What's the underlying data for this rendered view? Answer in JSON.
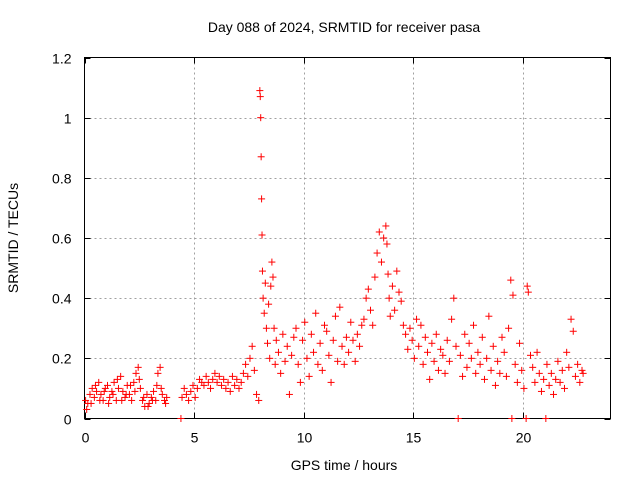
{
  "chart_data": {
    "type": "scatter",
    "title": "Day 088 of 2024, SRMTID for receiver pasa",
    "xlabel": "GPS time / hours",
    "ylabel": "SRMTID / TECUs",
    "xlim": [
      0,
      24
    ],
    "ylim": [
      0,
      1.2
    ],
    "xticks": [
      0,
      5,
      10,
      15,
      20
    ],
    "xtick_labels": [
      "0",
      "5",
      "10",
      "15",
      "20"
    ],
    "yticks": [
      0,
      0.2,
      0.4,
      0.6,
      0.8,
      1.0,
      1.2
    ],
    "ytick_labels": [
      "0",
      "0.2",
      "0.4",
      "0.6",
      "0.8",
      "1",
      "1.2"
    ],
    "grid": true,
    "marker": "+",
    "color": "#ff0000",
    "series": [
      {
        "name": "SRMTID",
        "points": [
          [
            0.05,
            0.06
          ],
          [
            0.15,
            0.05
          ],
          [
            0.25,
            0.08
          ],
          [
            0.35,
            0.1
          ],
          [
            0.45,
            0.07
          ],
          [
            0.55,
            0.09
          ],
          [
            0.65,
            0.12
          ],
          [
            0.75,
            0.08
          ],
          [
            0.85,
            0.06
          ],
          [
            0.95,
            0.1
          ],
          [
            1.05,
            0.11
          ],
          [
            1.15,
            0.07
          ],
          [
            1.25,
            0.09
          ],
          [
            1.35,
            0.12
          ],
          [
            1.45,
            0.06
          ],
          [
            1.55,
            0.1
          ],
          [
            1.65,
            0.14
          ],
          [
            1.75,
            0.09
          ],
          [
            1.85,
            0.07
          ],
          [
            1.95,
            0.11
          ],
          [
            2.05,
            0.08
          ],
          [
            2.15,
            0.06
          ],
          [
            2.25,
            0.12
          ],
          [
            2.35,
            0.15
          ],
          [
            2.45,
            0.17
          ],
          [
            2.55,
            0.1
          ],
          [
            2.65,
            0.06
          ],
          [
            2.75,
            0.04
          ],
          [
            2.85,
            0.08
          ],
          [
            2.95,
            0.05
          ],
          [
            3.05,
            0.07
          ],
          [
            3.15,
            0.09
          ],
          [
            3.25,
            0.06
          ],
          [
            3.35,
            0.15
          ],
          [
            3.45,
            0.17
          ],
          [
            3.55,
            0.08
          ],
          [
            3.65,
            0.06
          ],
          [
            3.75,
            0.07
          ],
          [
            0.1,
            0.03
          ],
          [
            0.3,
            0.05
          ],
          [
            0.5,
            0.11
          ],
          [
            0.7,
            0.06
          ],
          [
            0.9,
            0.09
          ],
          [
            1.1,
            0.05
          ],
          [
            1.3,
            0.08
          ],
          [
            1.5,
            0.13
          ],
          [
            1.7,
            0.06
          ],
          [
            1.9,
            0.08
          ],
          [
            2.1,
            0.11
          ],
          [
            2.3,
            0.09
          ],
          [
            2.5,
            0.13
          ],
          [
            2.7,
            0.07
          ],
          [
            2.9,
            0.04
          ],
          [
            3.1,
            0.06
          ],
          [
            3.3,
            0.11
          ],
          [
            3.5,
            0.1
          ],
          [
            3.7,
            0.05
          ],
          [
            4.4,
            0.0
          ],
          [
            4.45,
            0.07
          ],
          [
            4.55,
            0.1
          ],
          [
            4.65,
            0.08
          ],
          [
            4.75,
            0.06
          ],
          [
            4.85,
            0.09
          ],
          [
            4.95,
            0.11
          ],
          [
            5.05,
            0.07
          ],
          [
            5.15,
            0.1
          ],
          [
            5.25,
            0.13
          ],
          [
            5.35,
            0.12
          ],
          [
            5.45,
            0.11
          ],
          [
            5.55,
            0.14
          ],
          [
            5.65,
            0.12
          ],
          [
            5.75,
            0.1
          ],
          [
            5.85,
            0.13
          ],
          [
            5.95,
            0.15
          ],
          [
            6.05,
            0.12
          ],
          [
            6.15,
            0.14
          ],
          [
            6.25,
            0.11
          ],
          [
            6.35,
            0.13
          ],
          [
            6.45,
            0.1
          ],
          [
            6.55,
            0.12
          ],
          [
            6.65,
            0.09
          ],
          [
            6.75,
            0.14
          ],
          [
            6.85,
            0.11
          ],
          [
            6.95,
            0.13
          ],
          [
            7.05,
            0.1
          ],
          [
            7.15,
            0.12
          ],
          [
            7.25,
            0.15
          ],
          [
            7.35,
            0.18
          ],
          [
            7.45,
            0.14
          ],
          [
            7.55,
            0.2
          ],
          [
            7.65,
            0.24
          ],
          [
            7.75,
            0.16
          ],
          [
            7.85,
            0.08
          ],
          [
            7.95,
            0.06
          ],
          [
            8.0,
            1.09
          ],
          [
            8.02,
            1.07
          ],
          [
            8.04,
            1.0
          ],
          [
            8.06,
            0.87
          ],
          [
            8.08,
            0.73
          ],
          [
            8.1,
            0.61
          ],
          [
            8.12,
            0.49
          ],
          [
            8.15,
            0.4
          ],
          [
            8.2,
            0.35
          ],
          [
            8.25,
            0.45
          ],
          [
            8.3,
            0.3
          ],
          [
            8.35,
            0.25
          ],
          [
            8.4,
            0.38
          ],
          [
            8.45,
            0.2
          ],
          [
            8.5,
            0.44
          ],
          [
            8.55,
            0.52
          ],
          [
            8.6,
            0.47
          ],
          [
            8.65,
            0.3
          ],
          [
            8.7,
            0.18
          ],
          [
            8.75,
            0.26
          ],
          [
            8.85,
            0.22
          ],
          [
            8.95,
            0.15
          ],
          [
            9.05,
            0.28
          ],
          [
            9.15,
            0.19
          ],
          [
            9.25,
            0.24
          ],
          [
            9.35,
            0.08
          ],
          [
            9.45,
            0.21
          ],
          [
            9.55,
            0.27
          ],
          [
            9.65,
            0.3
          ],
          [
            9.75,
            0.18
          ],
          [
            9.85,
            0.12
          ],
          [
            9.95,
            0.26
          ],
          [
            10.05,
            0.32
          ],
          [
            10.15,
            0.2
          ],
          [
            10.25,
            0.14
          ],
          [
            10.35,
            0.28
          ],
          [
            10.45,
            0.22
          ],
          [
            10.55,
            0.35
          ],
          [
            10.65,
            0.18
          ],
          [
            10.75,
            0.25
          ],
          [
            10.85,
            0.16
          ],
          [
            10.95,
            0.31
          ],
          [
            11.05,
            0.29
          ],
          [
            11.15,
            0.21
          ],
          [
            11.25,
            0.12
          ],
          [
            11.35,
            0.26
          ],
          [
            11.45,
            0.34
          ],
          [
            11.55,
            0.19
          ],
          [
            11.65,
            0.37
          ],
          [
            11.75,
            0.24
          ],
          [
            11.85,
            0.18
          ],
          [
            11.95,
            0.27
          ],
          [
            12.05,
            0.22
          ],
          [
            12.15,
            0.32
          ],
          [
            12.25,
            0.26
          ],
          [
            12.35,
            0.19
          ],
          [
            12.45,
            0.28
          ],
          [
            12.55,
            0.24
          ],
          [
            12.65,
            0.31
          ],
          [
            12.75,
            0.33
          ],
          [
            12.85,
            0.4
          ],
          [
            12.95,
            0.43
          ],
          [
            13.05,
            0.36
          ],
          [
            13.15,
            0.31
          ],
          [
            13.25,
            0.47
          ],
          [
            13.35,
            0.55
          ],
          [
            13.45,
            0.62
          ],
          [
            13.55,
            0.52
          ],
          [
            13.65,
            0.6
          ],
          [
            13.75,
            0.64
          ],
          [
            13.8,
            0.58
          ],
          [
            13.85,
            0.48
          ],
          [
            13.9,
            0.4
          ],
          [
            13.95,
            0.34
          ],
          [
            14.05,
            0.44
          ],
          [
            14.15,
            0.36
          ],
          [
            14.25,
            0.49
          ],
          [
            14.35,
            0.42
          ],
          [
            14.45,
            0.39
          ],
          [
            14.55,
            0.31
          ],
          [
            14.65,
            0.28
          ],
          [
            14.75,
            0.23
          ],
          [
            14.85,
            0.3
          ],
          [
            14.95,
            0.26
          ],
          [
            15.05,
            0.2
          ],
          [
            15.15,
            0.33
          ],
          [
            15.25,
            0.24
          ],
          [
            15.35,
            0.31
          ],
          [
            15.45,
            0.18
          ],
          [
            15.55,
            0.27
          ],
          [
            15.65,
            0.22
          ],
          [
            15.75,
            0.13
          ],
          [
            15.85,
            0.25
          ],
          [
            15.95,
            0.19
          ],
          [
            16.05,
            0.28
          ],
          [
            16.15,
            0.16
          ],
          [
            16.25,
            0.23
          ],
          [
            16.35,
            0.21
          ],
          [
            16.45,
            0.15
          ],
          [
            16.55,
            0.26
          ],
          [
            16.65,
            0.19
          ],
          [
            16.75,
            0.33
          ],
          [
            16.85,
            0.4
          ],
          [
            16.95,
            0.24
          ],
          [
            17.05,
            0.0
          ],
          [
            17.15,
            0.21
          ],
          [
            17.25,
            0.14
          ],
          [
            17.35,
            0.28
          ],
          [
            17.45,
            0.17
          ],
          [
            17.55,
            0.25
          ],
          [
            17.65,
            0.2
          ],
          [
            17.75,
            0.31
          ],
          [
            17.85,
            0.15
          ],
          [
            17.95,
            0.22
          ],
          [
            18.05,
            0.18
          ],
          [
            18.15,
            0.27
          ],
          [
            18.25,
            0.13
          ],
          [
            18.35,
            0.2
          ],
          [
            18.45,
            0.34
          ],
          [
            18.55,
            0.16
          ],
          [
            18.65,
            0.24
          ],
          [
            18.75,
            0.11
          ],
          [
            18.85,
            0.19
          ],
          [
            18.95,
            0.15
          ],
          [
            19.05,
            0.27
          ],
          [
            19.15,
            0.22
          ],
          [
            19.25,
            0.14
          ],
          [
            19.35,
            0.3
          ],
          [
            19.45,
            0.46
          ],
          [
            19.5,
            0.0
          ],
          [
            19.55,
            0.41
          ],
          [
            19.65,
            0.18
          ],
          [
            19.75,
            0.12
          ],
          [
            19.85,
            0.25
          ],
          [
            19.95,
            0.16
          ],
          [
            20.05,
            0.1
          ],
          [
            20.15,
            0.0
          ],
          [
            20.2,
            0.44
          ],
          [
            20.25,
            0.42
          ],
          [
            20.35,
            0.21
          ],
          [
            20.45,
            0.17
          ],
          [
            20.55,
            0.12
          ],
          [
            20.65,
            0.22
          ],
          [
            20.75,
            0.15
          ],
          [
            20.85,
            0.09
          ],
          [
            20.95,
            0.13
          ],
          [
            21.05,
            0.0
          ],
          [
            21.1,
            0.18
          ],
          [
            21.2,
            0.11
          ],
          [
            21.3,
            0.15
          ],
          [
            21.4,
            0.08
          ],
          [
            21.5,
            0.13
          ],
          [
            21.6,
            0.19
          ],
          [
            21.7,
            0.12
          ],
          [
            21.8,
            0.16
          ],
          [
            21.9,
            0.1
          ],
          [
            22.0,
            0.22
          ],
          [
            22.1,
            0.17
          ],
          [
            22.2,
            0.33
          ],
          [
            22.3,
            0.29
          ],
          [
            22.4,
            0.14
          ],
          [
            22.5,
            0.18
          ],
          [
            22.6,
            0.12
          ],
          [
            22.7,
            0.16
          ],
          [
            22.75,
            0.15
          ]
        ]
      }
    ]
  }
}
